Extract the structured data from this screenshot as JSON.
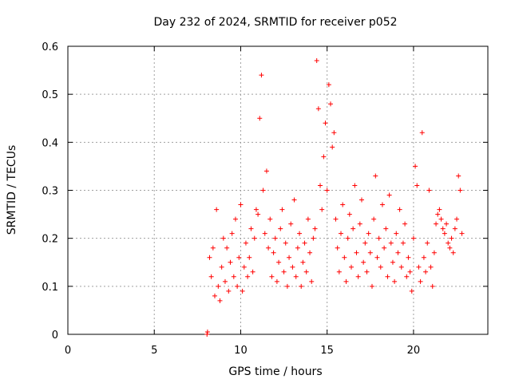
{
  "chart_data": {
    "type": "scatter",
    "title": "Day 232 of 2024, SRMTID for receiver p052",
    "xlabel": "GPS time / hours",
    "ylabel": "SRMTID / TECUs",
    "xlim": [
      0,
      24.3
    ],
    "ylim": [
      0,
      0.6
    ],
    "xticks": [
      0,
      5,
      10,
      15,
      20
    ],
    "yticks": [
      0,
      0.1,
      0.2,
      0.3,
      0.4,
      0.5,
      0.6
    ],
    "ytick_labels": [
      "0",
      "0.1",
      "0.2",
      "0.3",
      "0.4",
      "0.5",
      "0.6"
    ],
    "grid": true,
    "marker": "+",
    "color": "#ff0000",
    "series": [
      {
        "name": "p052",
        "x": [
          8.05,
          8.08,
          8.2,
          8.3,
          8.4,
          8.5,
          8.6,
          8.7,
          8.8,
          8.9,
          9.0,
          9.1,
          9.2,
          9.3,
          9.4,
          9.5,
          9.6,
          9.7,
          9.8,
          9.9,
          10.0,
          10.1,
          10.2,
          10.3,
          10.4,
          10.5,
          10.6,
          10.7,
          10.8,
          10.9,
          11.0,
          11.1,
          11.2,
          11.3,
          11.4,
          11.5,
          11.6,
          11.7,
          11.8,
          11.9,
          12.0,
          12.1,
          12.2,
          12.3,
          12.4,
          12.5,
          12.6,
          12.7,
          12.8,
          12.9,
          13.0,
          13.1,
          13.2,
          13.3,
          13.4,
          13.5,
          13.6,
          13.7,
          13.8,
          13.9,
          14.0,
          14.1,
          14.2,
          14.3,
          14.4,
          14.5,
          14.6,
          14.7,
          14.8,
          14.9,
          15.0,
          15.1,
          15.2,
          15.3,
          15.4,
          15.5,
          15.6,
          15.7,
          15.8,
          15.9,
          16.0,
          16.1,
          16.2,
          16.3,
          16.4,
          16.5,
          16.6,
          16.7,
          16.8,
          16.9,
          17.0,
          17.1,
          17.2,
          17.3,
          17.4,
          17.5,
          17.6,
          17.7,
          17.8,
          17.9,
          18.0,
          18.1,
          18.2,
          18.3,
          18.4,
          18.5,
          18.6,
          18.7,
          18.8,
          18.9,
          19.0,
          19.1,
          19.2,
          19.3,
          19.4,
          19.5,
          19.6,
          19.7,
          19.8,
          19.9,
          20.0,
          20.1,
          20.2,
          20.3,
          20.4,
          20.5,
          20.6,
          20.7,
          20.8,
          20.9,
          21.0,
          21.1,
          21.2,
          21.3,
          21.4,
          21.5,
          21.6,
          21.7,
          21.8,
          21.9,
          22.0,
          22.1,
          22.2,
          22.3,
          22.4,
          22.5,
          22.6,
          22.7,
          22.8
        ],
        "y": [
          0.0,
          0.005,
          0.16,
          0.12,
          0.18,
          0.08,
          0.26,
          0.1,
          0.07,
          0.14,
          0.2,
          0.11,
          0.18,
          0.09,
          0.15,
          0.21,
          0.12,
          0.24,
          0.1,
          0.16,
          0.27,
          0.09,
          0.14,
          0.19,
          0.12,
          0.16,
          0.22,
          0.13,
          0.2,
          0.26,
          0.25,
          0.45,
          0.54,
          0.3,
          0.21,
          0.34,
          0.18,
          0.24,
          0.12,
          0.17,
          0.2,
          0.11,
          0.15,
          0.22,
          0.26,
          0.13,
          0.19,
          0.1,
          0.16,
          0.23,
          0.14,
          0.28,
          0.12,
          0.18,
          0.21,
          0.1,
          0.15,
          0.19,
          0.13,
          0.24,
          0.17,
          0.11,
          0.2,
          0.22,
          0.57,
          0.47,
          0.31,
          0.26,
          0.37,
          0.44,
          0.3,
          0.52,
          0.48,
          0.39,
          0.42,
          0.24,
          0.18,
          0.13,
          0.21,
          0.27,
          0.16,
          0.11,
          0.2,
          0.25,
          0.14,
          0.22,
          0.31,
          0.17,
          0.12,
          0.23,
          0.28,
          0.15,
          0.19,
          0.13,
          0.21,
          0.17,
          0.1,
          0.24,
          0.33,
          0.16,
          0.2,
          0.14,
          0.27,
          0.18,
          0.22,
          0.12,
          0.29,
          0.19,
          0.15,
          0.11,
          0.21,
          0.17,
          0.26,
          0.14,
          0.19,
          0.23,
          0.12,
          0.16,
          0.13,
          0.09,
          0.2,
          0.35,
          0.31,
          0.14,
          0.11,
          0.42,
          0.16,
          0.13,
          0.19,
          0.3,
          0.14,
          0.1,
          0.17,
          0.23,
          0.25,
          0.26,
          0.24,
          0.22,
          0.21,
          0.23,
          0.19,
          0.18,
          0.2,
          0.17,
          0.22,
          0.24,
          0.33,
          0.3,
          0.21
        ]
      }
    ]
  }
}
